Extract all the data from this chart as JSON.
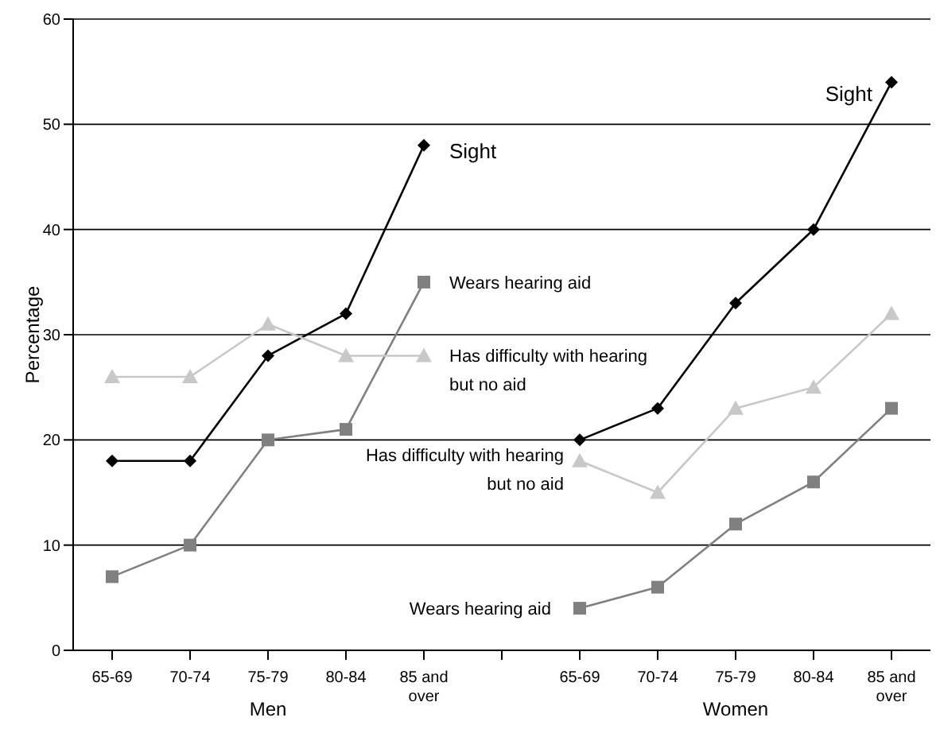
{
  "chart_data": {
    "type": "line",
    "ylabel": "Percentage",
    "categories": [
      "65-69",
      "70-74",
      "75-79",
      "80-84",
      "85 and over",
      null,
      "65-69",
      "70-74",
      "75-79",
      "80-84",
      "85 and over"
    ],
    "series": [
      {
        "name": "Sight",
        "color": "#000000",
        "marker": "diamond",
        "values": [
          18,
          18,
          28,
          32,
          48,
          null,
          20,
          23,
          33,
          40,
          54
        ]
      },
      {
        "name": "Wears hearing aid",
        "color": "#808080",
        "marker": "square",
        "values": [
          7,
          10,
          20,
          21,
          35,
          null,
          4,
          6,
          12,
          16,
          23
        ]
      },
      {
        "name": "Has difficulty with hearing but no aid",
        "color": "#c8c8c8",
        "marker": "triangle",
        "values": [
          26,
          26,
          31,
          28,
          28,
          null,
          18,
          15,
          23,
          25,
          32
        ]
      }
    ],
    "ylim": [
      0,
      60
    ],
    "yticks": [
      0,
      10,
      20,
      30,
      40,
      50,
      60
    ],
    "grid": "y",
    "legend": false,
    "annotations": [
      "Men",
      "Women"
    ]
  }
}
